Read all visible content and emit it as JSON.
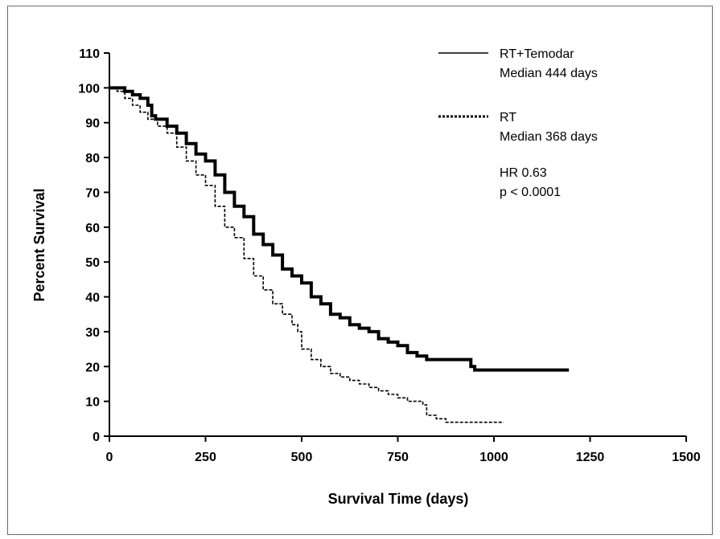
{
  "chart_data": {
    "type": "line",
    "xlabel": "Survival Time (days)",
    "ylabel": "Percent Survival",
    "xlim": [
      0,
      1500
    ],
    "ylim": [
      0,
      110
    ],
    "xticks": [
      0,
      250,
      500,
      750,
      1000,
      1250,
      1500
    ],
    "yticks": [
      0,
      10,
      20,
      30,
      40,
      50,
      60,
      70,
      80,
      90,
      100,
      110
    ],
    "grid": false,
    "legend_position": "top-right",
    "series": [
      {
        "name": "RT+Temodar",
        "legend_detail": "Median 444 days",
        "line_style": "solid",
        "color": "#000000",
        "x": [
          0,
          20,
          40,
          60,
          80,
          100,
          110,
          120,
          150,
          175,
          200,
          225,
          250,
          275,
          300,
          325,
          350,
          375,
          400,
          425,
          450,
          475,
          500,
          525,
          550,
          575,
          600,
          625,
          650,
          675,
          700,
          725,
          750,
          775,
          800,
          825,
          850,
          875,
          900,
          925,
          940,
          950,
          1000,
          1050,
          1100,
          1150,
          1195
        ],
        "values": [
          100,
          100,
          99,
          98,
          97,
          95,
          92,
          91,
          89,
          87,
          84,
          81,
          79,
          75,
          70,
          66,
          63,
          58,
          55,
          52,
          48,
          46,
          44,
          40,
          38,
          35,
          34,
          32,
          31,
          30,
          28,
          27,
          26,
          24,
          23,
          22,
          22,
          22,
          22,
          22,
          20,
          19,
          19,
          19,
          19,
          19,
          19
        ]
      },
      {
        "name": "RT",
        "legend_detail": "Median 368 days",
        "line_style": "dashed",
        "color": "#000000",
        "x": [
          0,
          20,
          40,
          60,
          80,
          100,
          125,
          150,
          175,
          200,
          225,
          250,
          275,
          300,
          325,
          350,
          375,
          400,
          425,
          450,
          475,
          490,
          500,
          525,
          550,
          575,
          600,
          625,
          650,
          675,
          700,
          725,
          750,
          775,
          800,
          815,
          825,
          850,
          875,
          900,
          950,
          1000,
          1025
        ],
        "values": [
          100,
          99,
          97,
          95,
          93,
          91,
          89,
          87,
          83,
          79,
          75,
          72,
          66,
          60,
          57,
          51,
          46,
          42,
          38,
          35,
          32,
          30,
          25,
          22,
          20,
          18,
          17,
          16,
          15,
          14,
          13,
          12,
          11,
          10,
          10,
          9,
          6,
          5,
          4,
          4,
          4,
          4,
          4
        ]
      }
    ],
    "annotations": [
      "HR 0.63",
      "p < 0.0001"
    ]
  }
}
